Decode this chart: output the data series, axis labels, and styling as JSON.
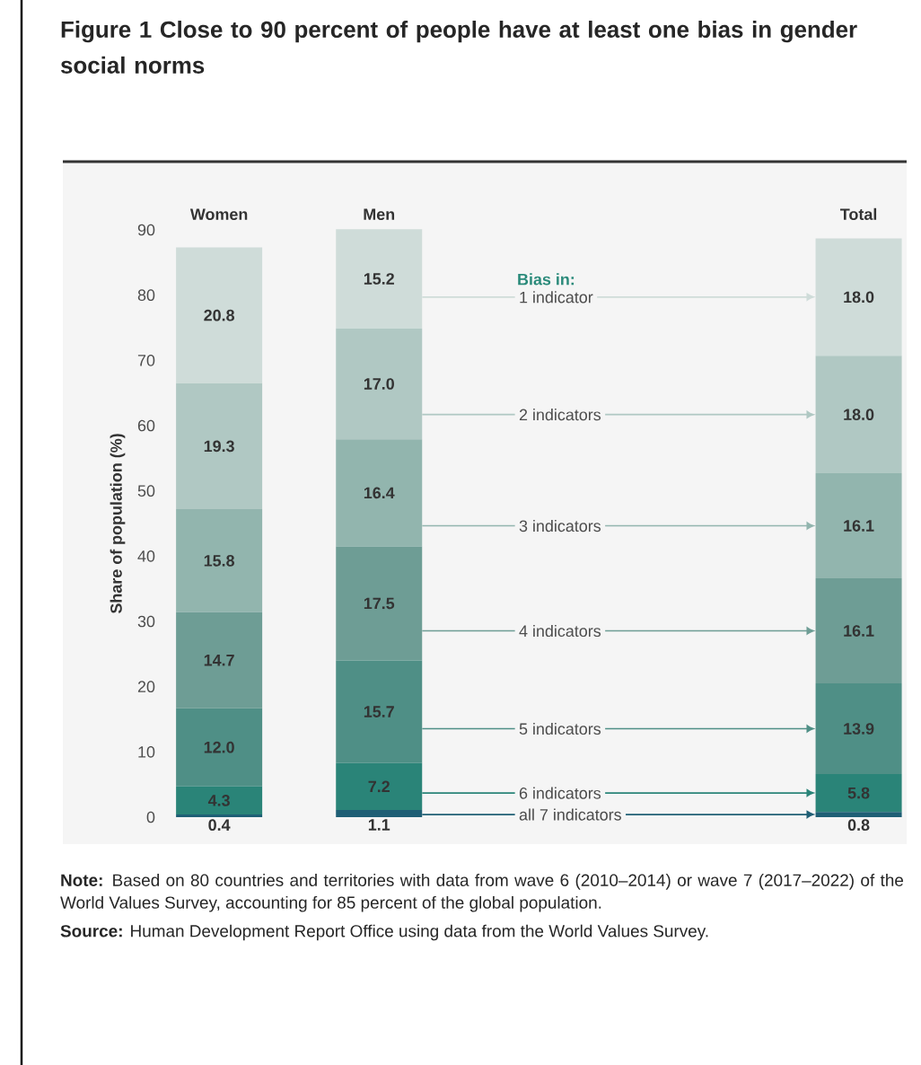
{
  "chart_data": {
    "type": "bar",
    "stacked": true,
    "title": "Figure 1 Close to 90 percent of people have at least one bias in gender social norms",
    "ylabel": "Share of population (%)",
    "legend_title": "Bias in:",
    "categories": [
      "Women",
      "Men",
      null,
      null,
      "Total"
    ],
    "ylim": [
      0,
      90
    ],
    "yticks": [
      0,
      10,
      20,
      30,
      40,
      50,
      60,
      70,
      80,
      90
    ],
    "series": [
      {
        "name": "all 7 indicators",
        "color": "#1f5f75",
        "values": [
          0.4,
          1.1,
          null,
          null,
          0.8
        ],
        "value_labels": [
          "0.4",
          "1.1",
          null,
          null,
          "0.8"
        ]
      },
      {
        "name": "6 indicators",
        "color": "#2a8478",
        "values": [
          4.3,
          7.2,
          null,
          null,
          5.8
        ],
        "value_labels": [
          "4.3",
          "7.2",
          null,
          null,
          "5.8"
        ]
      },
      {
        "name": "5 indicators",
        "color": "#4f8f86",
        "values": [
          12.0,
          15.7,
          null,
          null,
          13.9
        ],
        "value_labels": [
          "12.0",
          "15.7",
          null,
          null,
          "13.9"
        ]
      },
      {
        "name": "4 indicators",
        "color": "#6e9d95",
        "values": [
          14.7,
          17.5,
          null,
          null,
          16.1
        ],
        "value_labels": [
          "14.7",
          "17.5",
          null,
          null,
          "16.1"
        ]
      },
      {
        "name": "3 indicators",
        "color": "#92b5ae",
        "values": [
          15.8,
          16.4,
          null,
          null,
          16.1
        ],
        "value_labels": [
          "15.8",
          "16.4",
          null,
          null,
          "16.1"
        ]
      },
      {
        "name": "2 indicators",
        "color": "#b0c8c3",
        "values": [
          19.3,
          17.0,
          null,
          null,
          18.0
        ],
        "value_labels": [
          "19.3",
          "17.0",
          null,
          null,
          "18.0"
        ]
      },
      {
        "name": "1 indicator",
        "color": "#cfdcd9",
        "values": [
          20.8,
          15.2,
          null,
          null,
          18.0
        ],
        "value_labels": [
          "20.8",
          "15.2",
          null,
          null,
          "18.0"
        ]
      }
    ],
    "annotations": [
      "**Note:** Based on 80 countries and territories with data from wave 6 (2010–2014) or wave 7 (2017–2022) of the World Values Survey, accounting for 85 percent of the global population.",
      "**Source:** Human Development Report Office using data from the World Values Survey."
    ]
  }
}
